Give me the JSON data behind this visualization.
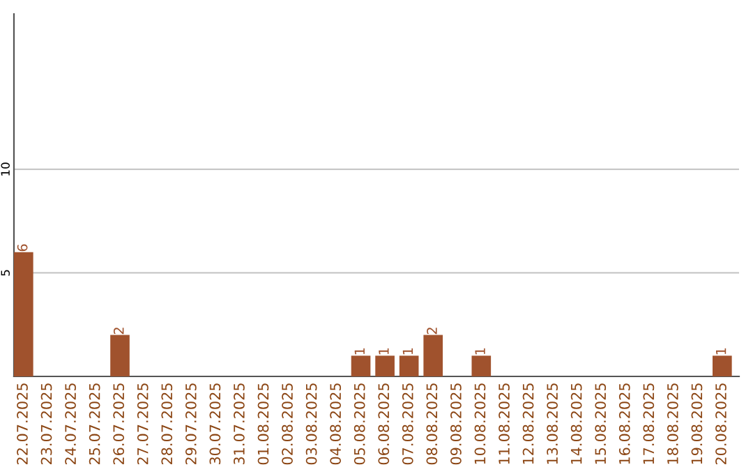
{
  "chart_data": {
    "type": "bar",
    "categories": [
      "22.07.2025",
      "23.07.2025",
      "24.07.2025",
      "25.07.2025",
      "26.07.2025",
      "27.07.2025",
      "28.07.2025",
      "29.07.2025",
      "30.07.2025",
      "31.07.2025",
      "01.08.2025",
      "02.08.2025",
      "03.08.2025",
      "04.08.2025",
      "05.08.2025",
      "06.08.2025",
      "07.08.2025",
      "08.08.2025",
      "09.08.2025",
      "10.08.2025",
      "11.08.2025",
      "12.08.2025",
      "13.08.2025",
      "14.08.2025",
      "15.08.2025",
      "16.08.2025",
      "17.08.2025",
      "18.08.2025",
      "19.08.2025",
      "20.08.2025"
    ],
    "values": [
      6,
      0,
      0,
      0,
      2,
      0,
      0,
      0,
      0,
      0,
      0,
      0,
      0,
      0,
      1,
      1,
      1,
      2,
      0,
      1,
      0,
      0,
      0,
      0,
      0,
      0,
      0,
      0,
      0,
      1
    ],
    "value_labels": [
      "6",
      null,
      null,
      null,
      "2",
      null,
      null,
      null,
      null,
      null,
      null,
      null,
      null,
      null,
      "1",
      "1",
      "1",
      "2",
      null,
      "1",
      null,
      null,
      null,
      null,
      null,
      null,
      null,
      null,
      null,
      "1"
    ],
    "color": "#a0522d",
    "ylim": [
      0,
      17.5
    ],
    "yticks": [
      5,
      10
    ],
    "grid": "y",
    "legend": false
  }
}
